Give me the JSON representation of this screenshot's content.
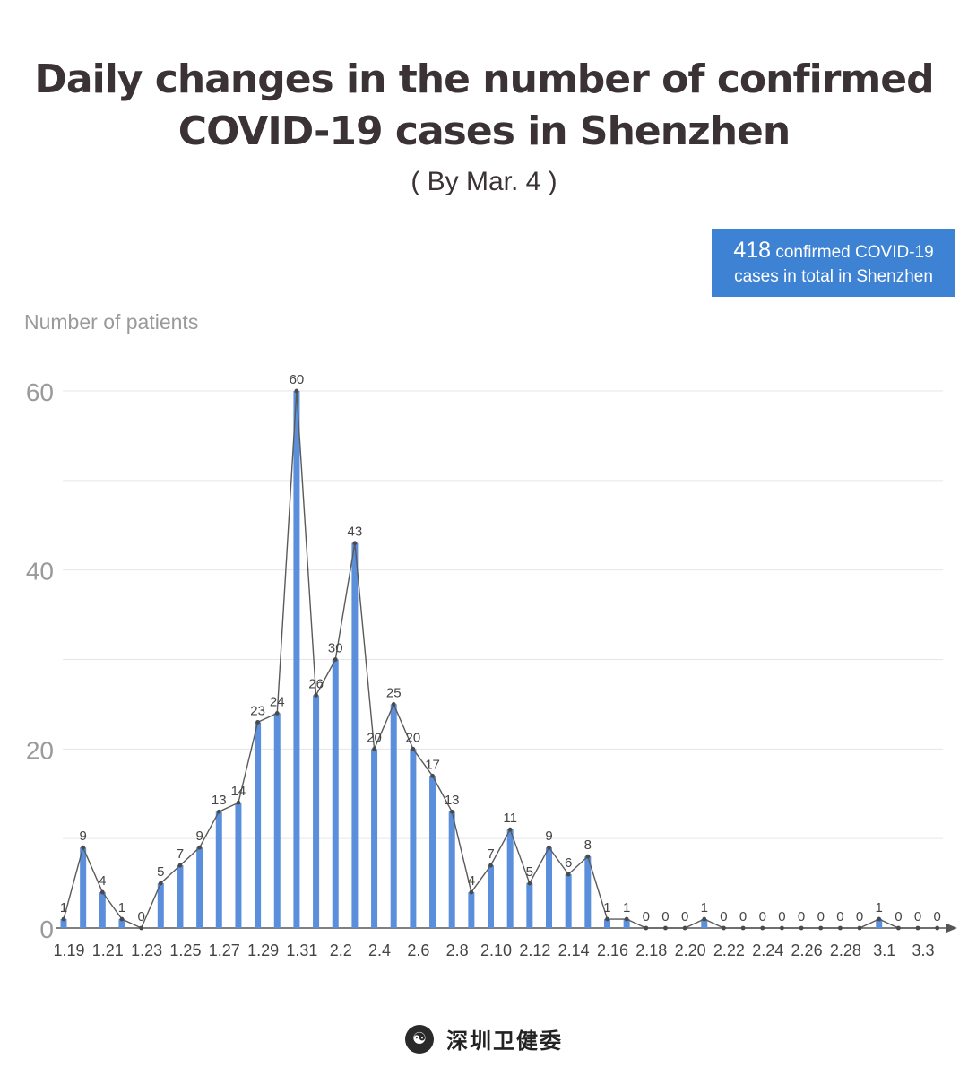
{
  "title_line1": "Daily changes in the number of  confirmed",
  "title_line2": "COVID-19 cases in Shenzhen",
  "subtitle": "( By Mar. 4 )",
  "total_box": {
    "number": "418",
    "line1_rest": " confirmed COVID-19",
    "line2": "cases in total in Shenzhen"
  },
  "footer": {
    "org_name": "深圳卫健委",
    "logo_icon": "health-commission-emblem-icon"
  },
  "chart_data": {
    "type": "bar",
    "ylabel": "Number of patients",
    "ylim": [
      0,
      60
    ],
    "yticks": [
      0,
      20,
      40,
      60
    ],
    "x_tick_labels": [
      "1.19",
      "1.21",
      "1.23",
      "1.25",
      "1.27",
      "1.29",
      "1.31",
      "2.2",
      "2.4",
      "2.6",
      "2.8",
      "2.10",
      "2.12",
      "2.14",
      "2.16",
      "2.18",
      "2.20",
      "2.22",
      "2.24",
      "2.26",
      "2.28",
      "3.1",
      "3.3"
    ],
    "categories": [
      "1.19",
      "1.20",
      "1.21",
      "1.22",
      "1.23",
      "1.24",
      "1.25",
      "1.26",
      "1.27",
      "1.28",
      "1.29",
      "1.30",
      "1.31",
      "2.1",
      "2.2",
      "2.3",
      "2.4",
      "2.5",
      "2.6",
      "2.7",
      "2.8",
      "2.9",
      "2.10",
      "2.11",
      "2.12",
      "2.13",
      "2.14",
      "2.15",
      "2.16",
      "2.17",
      "2.18",
      "2.19",
      "2.20",
      "2.21",
      "2.22",
      "2.23",
      "2.24",
      "2.25",
      "2.26",
      "2.27",
      "2.28",
      "2.29",
      "3.1",
      "3.2",
      "3.3",
      "3.4"
    ],
    "values": [
      1,
      9,
      4,
      1,
      0,
      5,
      7,
      9,
      13,
      14,
      23,
      24,
      60,
      26,
      30,
      43,
      20,
      25,
      20,
      17,
      13,
      4,
      7,
      11,
      5,
      9,
      6,
      8,
      1,
      1,
      0,
      0,
      0,
      1,
      0,
      0,
      0,
      0,
      0,
      0,
      0,
      0,
      1,
      0,
      0,
      0
    ],
    "bar_color": "#5b8fdc",
    "line_color": "#5a5a5a",
    "grid": true
  }
}
